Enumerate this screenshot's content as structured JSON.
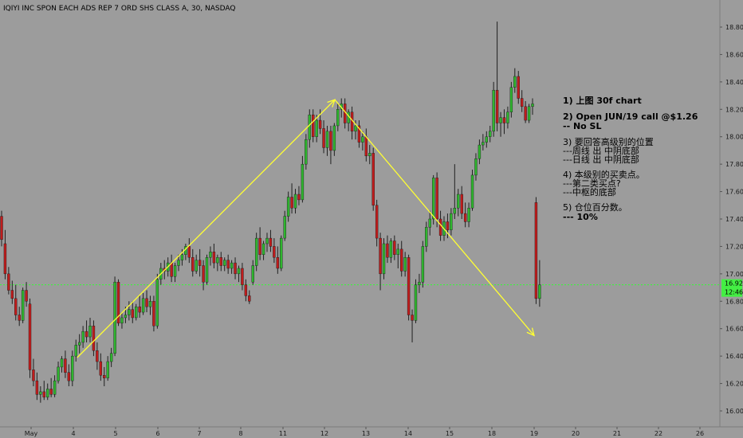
{
  "chart_data": {
    "type": "candlestick",
    "title": "IQIYI INC SPON EACH ADS REP 7 ORD SHS CLASS A, 30, NASDAQ",
    "x_ticks": [
      "May",
      "4",
      "5",
      "6",
      "7",
      "8",
      "11",
      "12",
      "13",
      "14",
      "15",
      "18",
      "19",
      "20",
      "21",
      "22",
      "26"
    ],
    "y_ticks": [
      "16.00",
      "16.20",
      "16.40",
      "16.60",
      "16.80",
      "17.00",
      "17.20",
      "17.40",
      "17.60",
      "17.80",
      "18.00",
      "18.20",
      "18.40",
      "18.60",
      "18.80"
    ],
    "ylim": [
      15.98,
      18.96
    ],
    "current_price": {
      "value": 16.92,
      "label": "16.92",
      "countdown": "12:46"
    },
    "arrows": [
      {
        "from": {
          "day": "4",
          "price": 16.39
        },
        "to": {
          "day": "12",
          "price": 18.27
        }
      },
      {
        "from": {
          "day": "12",
          "price": 18.27
        },
        "to": {
          "day": "19",
          "price": 16.55
        }
      }
    ],
    "candles": [
      {
        "o": 17.42,
        "h": 17.46,
        "c": 17.25,
        "l": 17.2
      },
      {
        "o": 17.22,
        "h": 17.32,
        "c": 17.0,
        "l": 16.96
      },
      {
        "o": 17.0,
        "h": 17.05,
        "c": 16.88,
        "l": 16.85
      },
      {
        "o": 16.88,
        "h": 16.95,
        "c": 16.82,
        "l": 16.78
      },
      {
        "o": 16.82,
        "h": 16.92,
        "c": 16.7,
        "l": 16.66
      },
      {
        "o": 16.7,
        "h": 16.76,
        "c": 16.66,
        "l": 16.62
      },
      {
        "o": 16.66,
        "h": 16.9,
        "c": 16.88,
        "l": 16.64
      },
      {
        "o": 16.88,
        "h": 16.94,
        "c": 16.8,
        "l": 16.76
      },
      {
        "o": 16.78,
        "h": 16.82,
        "c": 16.3,
        "l": 16.24
      },
      {
        "o": 16.3,
        "h": 16.38,
        "c": 16.22,
        "l": 16.18
      },
      {
        "o": 16.22,
        "h": 16.28,
        "c": 16.12,
        "l": 16.08
      },
      {
        "o": 16.12,
        "h": 16.18,
        "c": 16.14,
        "l": 16.06
      },
      {
        "o": 16.14,
        "h": 16.22,
        "c": 16.1,
        "l": 16.08
      },
      {
        "o": 16.1,
        "h": 16.2,
        "c": 16.16,
        "l": 16.08
      },
      {
        "o": 16.16,
        "h": 16.24,
        "c": 16.12,
        "l": 16.1
      },
      {
        "o": 16.12,
        "h": 16.26,
        "c": 16.22,
        "l": 16.1
      },
      {
        "o": 16.22,
        "h": 16.36,
        "c": 16.32,
        "l": 16.2
      },
      {
        "o": 16.32,
        "h": 16.4,
        "c": 16.38,
        "l": 16.28
      },
      {
        "o": 16.38,
        "h": 16.44,
        "c": 16.28,
        "l": 16.24
      },
      {
        "o": 16.28,
        "h": 16.34,
        "c": 16.22,
        "l": 16.18
      },
      {
        "o": 16.22,
        "h": 16.44,
        "c": 16.4,
        "l": 16.18
      },
      {
        "o": 16.4,
        "h": 16.52,
        "c": 16.48,
        "l": 16.36
      },
      {
        "o": 16.48,
        "h": 16.56,
        "c": 16.5,
        "l": 16.42
      },
      {
        "o": 16.5,
        "h": 16.62,
        "c": 16.58,
        "l": 16.46
      },
      {
        "o": 16.58,
        "h": 16.66,
        "c": 16.54,
        "l": 16.5
      },
      {
        "o": 16.54,
        "h": 16.68,
        "c": 16.62,
        "l": 16.5
      },
      {
        "o": 16.62,
        "h": 16.66,
        "c": 16.44,
        "l": 16.4
      },
      {
        "o": 16.44,
        "h": 16.5,
        "c": 16.36,
        "l": 16.3
      },
      {
        "o": 16.36,
        "h": 16.42,
        "c": 16.26,
        "l": 16.22
      },
      {
        "o": 16.26,
        "h": 16.32,
        "c": 16.24,
        "l": 16.18
      },
      {
        "o": 16.24,
        "h": 16.4,
        "c": 16.36,
        "l": 16.22
      },
      {
        "o": 16.36,
        "h": 16.46,
        "c": 16.42,
        "l": 16.32
      },
      {
        "o": 16.42,
        "h": 16.98,
        "c": 16.94,
        "l": 16.4
      },
      {
        "o": 16.94,
        "h": 16.96,
        "c": 16.64,
        "l": 16.62
      },
      {
        "o": 16.64,
        "h": 16.72,
        "c": 16.68,
        "l": 16.6
      },
      {
        "o": 16.68,
        "h": 16.76,
        "c": 16.7,
        "l": 16.64
      },
      {
        "o": 16.7,
        "h": 16.8,
        "c": 16.74,
        "l": 16.66
      },
      {
        "o": 16.74,
        "h": 16.8,
        "c": 16.68,
        "l": 16.64
      },
      {
        "o": 16.68,
        "h": 16.78,
        "c": 16.76,
        "l": 16.66
      },
      {
        "o": 16.76,
        "h": 16.84,
        "c": 16.72,
        "l": 16.68
      },
      {
        "o": 16.72,
        "h": 16.86,
        "c": 16.82,
        "l": 16.7
      },
      {
        "o": 16.82,
        "h": 16.88,
        "c": 16.76,
        "l": 16.72
      },
      {
        "o": 16.76,
        "h": 16.84,
        "c": 16.8,
        "l": 16.7
      },
      {
        "o": 16.8,
        "h": 16.84,
        "c": 16.62,
        "l": 16.58
      },
      {
        "o": 16.62,
        "h": 17.0,
        "c": 16.96,
        "l": 16.6
      },
      {
        "o": 16.96,
        "h": 17.08,
        "c": 17.04,
        "l": 16.92
      },
      {
        "o": 17.04,
        "h": 17.1,
        "c": 17.02,
        "l": 16.96
      },
      {
        "o": 17.02,
        "h": 17.12,
        "c": 17.08,
        "l": 16.98
      },
      {
        "o": 17.08,
        "h": 17.14,
        "c": 16.98,
        "l": 16.94
      },
      {
        "o": 16.98,
        "h": 17.08,
        "c": 17.06,
        "l": 16.94
      },
      {
        "o": 17.06,
        "h": 17.14,
        "c": 17.1,
        "l": 17.02
      },
      {
        "o": 17.1,
        "h": 17.18,
        "c": 17.14,
        "l": 17.06
      },
      {
        "o": 17.14,
        "h": 17.22,
        "c": 17.2,
        "l": 17.1
      },
      {
        "o": 17.2,
        "h": 17.26,
        "c": 17.12,
        "l": 17.08
      },
      {
        "o": 17.12,
        "h": 17.18,
        "c": 17.02,
        "l": 16.98
      },
      {
        "o": 17.02,
        "h": 17.14,
        "c": 17.1,
        "l": 17.0
      },
      {
        "o": 17.1,
        "h": 17.18,
        "c": 17.06,
        "l": 16.98
      },
      {
        "o": 17.06,
        "h": 17.1,
        "c": 16.94,
        "l": 16.88
      },
      {
        "o": 16.94,
        "h": 17.14,
        "c": 17.12,
        "l": 16.92
      },
      {
        "o": 17.12,
        "h": 17.2,
        "c": 17.16,
        "l": 17.06
      },
      {
        "o": 17.16,
        "h": 17.22,
        "c": 17.08,
        "l": 17.04
      },
      {
        "o": 17.08,
        "h": 17.14,
        "c": 17.12,
        "l": 17.02
      },
      {
        "o": 17.12,
        "h": 17.16,
        "c": 17.06,
        "l": 17.02
      },
      {
        "o": 17.06,
        "h": 17.12,
        "c": 17.1,
        "l": 17.02
      },
      {
        "o": 17.1,
        "h": 17.14,
        "c": 17.04,
        "l": 17.0
      },
      {
        "o": 17.04,
        "h": 17.1,
        "c": 17.08,
        "l": 17.0
      },
      {
        "o": 17.08,
        "h": 17.12,
        "c": 17.0,
        "l": 16.96
      },
      {
        "o": 17.0,
        "h": 17.06,
        "c": 17.04,
        "l": 16.94
      },
      {
        "o": 17.04,
        "h": 17.08,
        "c": 16.92,
        "l": 16.88
      },
      {
        "o": 16.92,
        "h": 16.96,
        "c": 16.84,
        "l": 16.8
      },
      {
        "o": 16.84,
        "h": 16.88,
        "c": 16.8,
        "l": 16.78
      },
      {
        "o": 16.94,
        "h": 17.1,
        "c": 17.06,
        "l": 16.92
      },
      {
        "o": 17.06,
        "h": 17.3,
        "c": 17.26,
        "l": 17.02
      },
      {
        "o": 17.26,
        "h": 17.34,
        "c": 17.14,
        "l": 17.1
      },
      {
        "o": 17.14,
        "h": 17.24,
        "c": 17.22,
        "l": 17.1
      },
      {
        "o": 17.22,
        "h": 17.3,
        "c": 17.26,
        "l": 17.16
      },
      {
        "o": 17.26,
        "h": 17.32,
        "c": 17.2,
        "l": 17.16
      },
      {
        "o": 17.2,
        "h": 17.26,
        "c": 17.12,
        "l": 17.08
      },
      {
        "o": 17.12,
        "h": 17.2,
        "c": 17.04,
        "l": 17.0
      },
      {
        "o": 17.04,
        "h": 17.28,
        "c": 17.26,
        "l": 17.02
      },
      {
        "o": 17.26,
        "h": 17.46,
        "c": 17.42,
        "l": 17.24
      },
      {
        "o": 17.42,
        "h": 17.6,
        "c": 17.56,
        "l": 17.38
      },
      {
        "o": 17.56,
        "h": 17.66,
        "c": 17.48,
        "l": 17.44
      },
      {
        "o": 17.48,
        "h": 17.62,
        "c": 17.58,
        "l": 17.44
      },
      {
        "o": 17.58,
        "h": 17.64,
        "c": 17.54,
        "l": 17.5
      },
      {
        "o": 17.54,
        "h": 17.86,
        "c": 17.8,
        "l": 17.52
      },
      {
        "o": 17.8,
        "h": 18.02,
        "c": 17.98,
        "l": 17.76
      },
      {
        "o": 17.98,
        "h": 18.2,
        "c": 18.16,
        "l": 17.92
      },
      {
        "o": 18.16,
        "h": 18.2,
        "c": 18.0,
        "l": 17.96
      },
      {
        "o": 18.0,
        "h": 18.16,
        "c": 18.12,
        "l": 17.96
      },
      {
        "o": 18.12,
        "h": 18.2,
        "c": 18.06,
        "l": 18.02
      },
      {
        "o": 18.06,
        "h": 18.12,
        "c": 17.92,
        "l": 17.88
      },
      {
        "o": 17.92,
        "h": 18.08,
        "c": 18.04,
        "l": 17.86
      },
      {
        "o": 18.04,
        "h": 18.08,
        "c": 17.9,
        "l": 17.8
      },
      {
        "o": 17.9,
        "h": 18.1,
        "c": 18.08,
        "l": 17.86
      },
      {
        "o": 18.08,
        "h": 18.24,
        "c": 18.2,
        "l": 18.04
      },
      {
        "o": 18.2,
        "h": 18.28,
        "c": 18.24,
        "l": 18.14
      },
      {
        "o": 18.24,
        "h": 18.28,
        "c": 18.1,
        "l": 18.06
      },
      {
        "o": 18.1,
        "h": 18.2,
        "c": 18.18,
        "l": 18.04
      },
      {
        "o": 18.18,
        "h": 18.22,
        "c": 18.04,
        "l": 17.98
      },
      {
        "o": 18.04,
        "h": 18.12,
        "c": 18.08,
        "l": 17.98
      },
      {
        "o": 18.08,
        "h": 18.12,
        "c": 17.96,
        "l": 17.92
      },
      {
        "o": 17.96,
        "h": 18.04,
        "c": 18.0,
        "l": 17.9
      },
      {
        "o": 18.0,
        "h": 18.06,
        "c": 17.86,
        "l": 17.82
      },
      {
        "o": 17.86,
        "h": 17.94,
        "c": 17.88,
        "l": 17.8
      },
      {
        "o": 17.88,
        "h": 17.92,
        "c": 17.5,
        "l": 17.46
      },
      {
        "o": 17.5,
        "h": 17.54,
        "c": 17.26,
        "l": 17.2
      },
      {
        "o": 17.26,
        "h": 17.3,
        "c": 17.0,
        "l": 16.88
      },
      {
        "o": 17.0,
        "h": 17.26,
        "c": 17.22,
        "l": 16.96
      },
      {
        "o": 17.22,
        "h": 17.28,
        "c": 17.12,
        "l": 17.08
      },
      {
        "o": 17.12,
        "h": 17.26,
        "c": 17.24,
        "l": 17.08
      },
      {
        "o": 17.24,
        "h": 17.28,
        "c": 17.14,
        "l": 17.1
      },
      {
        "o": 17.14,
        "h": 17.22,
        "c": 17.18,
        "l": 17.04
      },
      {
        "o": 17.18,
        "h": 17.24,
        "c": 17.02,
        "l": 16.98
      },
      {
        "o": 17.02,
        "h": 17.16,
        "c": 17.12,
        "l": 16.98
      },
      {
        "o": 17.12,
        "h": 17.14,
        "c": 16.7,
        "l": 16.66
      },
      {
        "o": 16.7,
        "h": 16.74,
        "c": 16.66,
        "l": 16.5
      },
      {
        "o": 16.66,
        "h": 16.96,
        "c": 16.92,
        "l": 16.64
      },
      {
        "o": 16.92,
        "h": 17.0,
        "c": 16.94,
        "l": 16.86
      },
      {
        "o": 16.94,
        "h": 17.24,
        "c": 17.2,
        "l": 16.9
      },
      {
        "o": 17.2,
        "h": 17.38,
        "c": 17.34,
        "l": 17.16
      },
      {
        "o": 17.34,
        "h": 17.46,
        "c": 17.4,
        "l": 17.28
      },
      {
        "o": 17.4,
        "h": 17.72,
        "c": 17.7,
        "l": 17.36
      },
      {
        "o": 17.7,
        "h": 17.74,
        "c": 17.4,
        "l": 17.34
      },
      {
        "o": 17.4,
        "h": 17.46,
        "c": 17.28,
        "l": 17.24
      },
      {
        "o": 17.28,
        "h": 17.42,
        "c": 17.38,
        "l": 17.24
      },
      {
        "o": 17.38,
        "h": 17.44,
        "c": 17.32,
        "l": 17.26
      },
      {
        "o": 17.32,
        "h": 17.48,
        "c": 17.44,
        "l": 17.28
      },
      {
        "o": 17.44,
        "h": 17.8,
        "c": 17.48,
        "l": 17.4
      },
      {
        "o": 17.48,
        "h": 17.62,
        "c": 17.58,
        "l": 17.42
      },
      {
        "o": 17.58,
        "h": 17.64,
        "c": 17.44,
        "l": 17.4
      },
      {
        "o": 17.44,
        "h": 17.52,
        "c": 17.38,
        "l": 17.34
      },
      {
        "o": 17.38,
        "h": 17.52,
        "c": 17.48,
        "l": 17.34
      },
      {
        "o": 17.48,
        "h": 17.76,
        "c": 17.72,
        "l": 17.46
      },
      {
        "o": 17.72,
        "h": 17.88,
        "c": 17.84,
        "l": 17.68
      },
      {
        "o": 17.84,
        "h": 17.98,
        "c": 17.94,
        "l": 17.8
      },
      {
        "o": 17.94,
        "h": 18.02,
        "c": 17.96,
        "l": 17.9
      },
      {
        "o": 17.96,
        "h": 18.04,
        "c": 18.0,
        "l": 17.92
      },
      {
        "o": 18.0,
        "h": 18.08,
        "c": 18.04,
        "l": 17.96
      },
      {
        "o": 18.04,
        "h": 18.4,
        "c": 18.34,
        "l": 18.0
      },
      {
        "o": 18.34,
        "h": 18.84,
        "c": 18.1,
        "l": 18.04
      },
      {
        "o": 18.1,
        "h": 18.18,
        "c": 18.14,
        "l": 18.0
      },
      {
        "o": 18.14,
        "h": 18.2,
        "c": 18.1,
        "l": 18.02
      },
      {
        "o": 18.1,
        "h": 18.22,
        "c": 18.18,
        "l": 18.06
      },
      {
        "o": 18.18,
        "h": 18.4,
        "c": 18.36,
        "l": 18.14
      },
      {
        "o": 18.36,
        "h": 18.5,
        "c": 18.44,
        "l": 18.32
      },
      {
        "o": 18.44,
        "h": 18.48,
        "c": 18.28,
        "l": 18.24
      },
      {
        "o": 18.28,
        "h": 18.34,
        "c": 18.22,
        "l": 18.18
      },
      {
        "o": 18.22,
        "h": 18.26,
        "c": 18.12,
        "l": 18.1
      },
      {
        "o": 18.12,
        "h": 18.24,
        "c": 18.22,
        "l": 18.1
      },
      {
        "o": 18.22,
        "h": 18.28,
        "c": 18.24,
        "l": 18.16
      },
      {
        "o": 17.52,
        "h": 17.56,
        "c": 16.82,
        "l": 16.78
      },
      {
        "o": 16.82,
        "h": 17.1,
        "c": 16.92,
        "l": 16.76
      }
    ]
  },
  "annotations": [
    {
      "label": "1)  上图 30f chart"
    },
    {
      "label": "2)  Open JUN/19 call @$1.26"
    },
    {
      "label": "-- No SL"
    },
    {
      "label": "3)  要回答高级别的位置"
    },
    {
      "label": "---周线 出 中阴底部"
    },
    {
      "label": "---日线 出 中阴底部"
    },
    {
      "label": "4)  本级别的买卖点。"
    },
    {
      "label": "---第二类买点?"
    },
    {
      "label": "---中枢的底部"
    },
    {
      "label": "5)  仓位百分数。"
    },
    {
      "label": "--- 10%"
    }
  ],
  "colors": {
    "background": "#9c9c9c",
    "up": "#2fb52f",
    "down": "#c01c1c",
    "wick": "#202020",
    "arrow": "#ffff33",
    "price_line": "#33ff33",
    "price_tag": "#44ee44",
    "axis_text": "#1a1a1a"
  }
}
